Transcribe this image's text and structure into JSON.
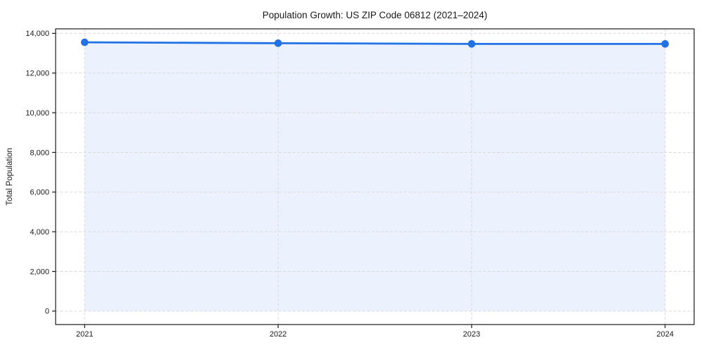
{
  "chart_data": {
    "type": "area",
    "title": "Population Growth: US ZIP Code 06812 (2021–2024)",
    "xlabel": "",
    "ylabel": "Total Population",
    "x": [
      2021,
      2022,
      2023,
      2024
    ],
    "series": [
      {
        "name": "Total Population",
        "values": [
          13550,
          13505,
          13470,
          13470
        ]
      }
    ],
    "x_tick_labels": [
      "2021",
      "2022",
      "2023",
      "2024"
    ],
    "y_ticks": [
      0,
      2000,
      4000,
      6000,
      8000,
      10000,
      12000,
      14000
    ],
    "y_tick_labels": [
      "0",
      "2,000",
      "4,000",
      "6,000",
      "8,000",
      "10,000",
      "12,000",
      "14,000"
    ],
    "xlim": [
      2020.85,
      2024.15
    ],
    "ylim": [
      -677.5,
      14227.5
    ],
    "grid": true,
    "grid_style": "dashed",
    "legend": false,
    "marker": "circle",
    "colors": {
      "line": "#2172e4",
      "marker": "#2172e4",
      "fill": "#2172e4",
      "fill_opacity": "0.09",
      "grid": "#d9d9d9",
      "axis": "#1a1a1a",
      "text": "#1a1a1a",
      "background": "#ffffff"
    }
  }
}
